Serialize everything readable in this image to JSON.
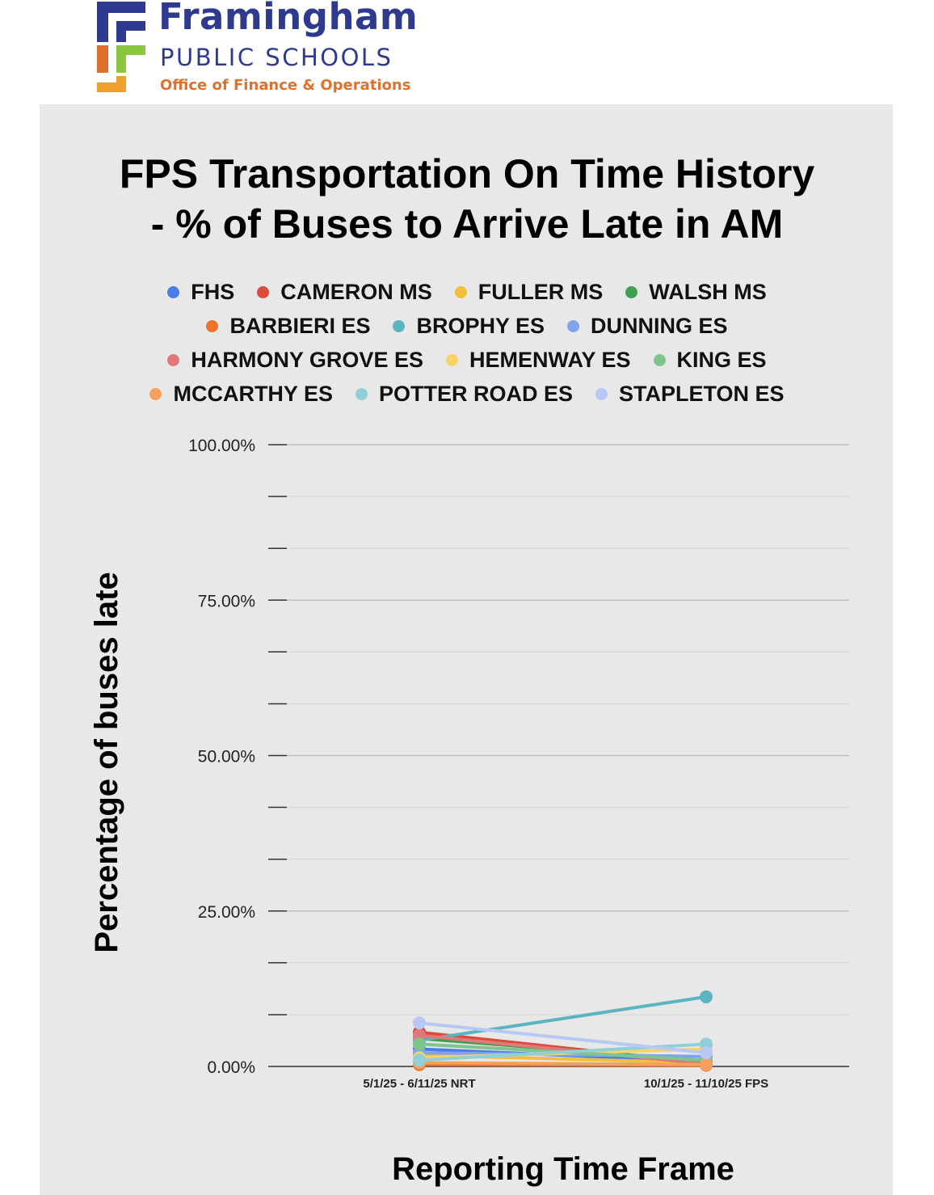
{
  "header": {
    "org_name": "Framingham",
    "org_sub": "PUBLIC SCHOOLS",
    "office": "Office of Finance & Operations"
  },
  "colors": {
    "brand_blue": "#2e3a8f",
    "brand_orange": "#e0712d",
    "brand_green": "#8cc63f",
    "panel_bg": "#e8e8e8"
  },
  "chart_data": {
    "type": "line",
    "title_line1": "FPS Transportation On Time History",
    "title_line2": "- % of Buses to Arrive Late in AM",
    "xlabel": "Reporting Time Frame",
    "ylabel": "Percentage of buses late",
    "categories": [
      "5/1/25 - 6/11/25 NRT",
      "10/1/25 - 11/10/25 FPS"
    ],
    "ylim": [
      0,
      100
    ],
    "yticks": [
      {
        "value": 100,
        "label": "100.00%"
      },
      {
        "value": 75,
        "label": "75.00%"
      },
      {
        "value": 50,
        "label": "50.00%"
      },
      {
        "value": 25,
        "label": "25.00%"
      },
      {
        "value": 0,
        "label": "0.00%"
      }
    ],
    "minor_ticks": [
      91.67,
      83.33,
      66.67,
      58.33,
      41.67,
      33.33,
      16.67,
      8.33
    ],
    "grid": true,
    "legend_position": "top",
    "series": [
      {
        "name": "FHS",
        "color": "#4a7ee6",
        "values": [
          2.8,
          0.8
        ]
      },
      {
        "name": "CAMERON MS",
        "color": "#db4a3b",
        "values": [
          5.5,
          0.5
        ]
      },
      {
        "name": "FULLER MS",
        "color": "#f3bf3a",
        "values": [
          1.8,
          0.6
        ]
      },
      {
        "name": "WALSH MS",
        "color": "#3f9f52",
        "values": [
          4.5,
          0.9
        ]
      },
      {
        "name": "BARBIERI ES",
        "color": "#f07228",
        "values": [
          0.3,
          0.2
        ]
      },
      {
        "name": "BROPHY ES",
        "color": "#5bb5c0",
        "values": [
          4.2,
          11.2
        ]
      },
      {
        "name": "DUNNING ES",
        "color": "#7fa3ee",
        "values": [
          2.2,
          1.6
        ]
      },
      {
        "name": "HARMONY GROVE ES",
        "color": "#e3787a",
        "values": [
          5.0,
          0.4
        ]
      },
      {
        "name": "HEMENWAY ES",
        "color": "#f7d46b",
        "values": [
          1.4,
          2.8
        ]
      },
      {
        "name": "KING ES",
        "color": "#7fc48d",
        "values": [
          3.6,
          1.0
        ]
      },
      {
        "name": "MCCARTHY ES",
        "color": "#f5a05c",
        "values": [
          0.6,
          0.3
        ]
      },
      {
        "name": "POTTER ROAD ES",
        "color": "#8fd0d8",
        "values": [
          1.0,
          3.6
        ]
      },
      {
        "name": "STAPLETON ES",
        "color": "#b8c8f5",
        "values": [
          7.0,
          2.2
        ]
      }
    ]
  }
}
